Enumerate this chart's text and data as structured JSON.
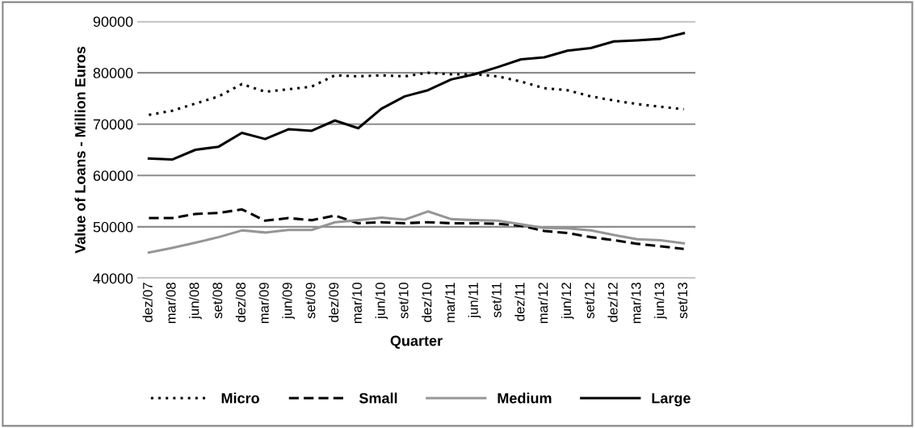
{
  "chart_data": {
    "type": "line",
    "xlabel": "Quarter",
    "ylabel": "Value of Loans - Million Euros",
    "categories": [
      "dez/07",
      "mar/08",
      "jun/08",
      "set/08",
      "dez/08",
      "mar/09",
      "jun/09",
      "set/09",
      "dez/09",
      "mar/10",
      "jun/10",
      "set/10",
      "dez/10",
      "mar/11",
      "jun/11",
      "set/11",
      "dez/11",
      "mar/12",
      "jun/12",
      "set/12",
      "dez/12",
      "mar/13",
      "jun/13",
      "set/13"
    ],
    "ylim": [
      40000,
      90000
    ],
    "yticks": [
      40000,
      50000,
      60000,
      70000,
      80000,
      90000
    ],
    "grid": "y",
    "legend": "bottom",
    "marker": "none",
    "series": [
      {
        "name": "Micro",
        "color": "#000000",
        "line_style": "dotted",
        "values": [
          71800,
          72600,
          74000,
          75400,
          77800,
          76300,
          76800,
          77300,
          79500,
          79300,
          79500,
          79300,
          80000,
          79700,
          79700,
          79300,
          78300,
          77000,
          76600,
          75400,
          74600,
          73900,
          73400,
          72900
        ]
      },
      {
        "name": "Small",
        "color": "#000000",
        "line_style": "dashed",
        "values": [
          51700,
          51700,
          52500,
          52700,
          53400,
          51200,
          51700,
          51300,
          52200,
          50700,
          50900,
          50700,
          50900,
          50700,
          50700,
          50600,
          50200,
          49200,
          48800,
          48000,
          47400,
          46700,
          46200,
          45700
        ]
      },
      {
        "name": "Medium",
        "color": "#969696",
        "line_style": "solid",
        "values": [
          45000,
          45900,
          46900,
          48000,
          49300,
          48900,
          49400,
          49400,
          50900,
          51300,
          51800,
          51400,
          53000,
          51500,
          51300,
          51200,
          50500,
          49800,
          49700,
          49300,
          48400,
          47600,
          47400,
          46800
        ]
      },
      {
        "name": "Large",
        "color": "#000000",
        "line_style": "solid",
        "values": [
          63300,
          63100,
          65000,
          65600,
          68300,
          67100,
          69000,
          68700,
          70700,
          69200,
          73000,
          75400,
          76600,
          78700,
          79700,
          81100,
          82600,
          83000,
          84300,
          84800,
          86100,
          86300,
          86600,
          87700
        ]
      }
    ]
  }
}
